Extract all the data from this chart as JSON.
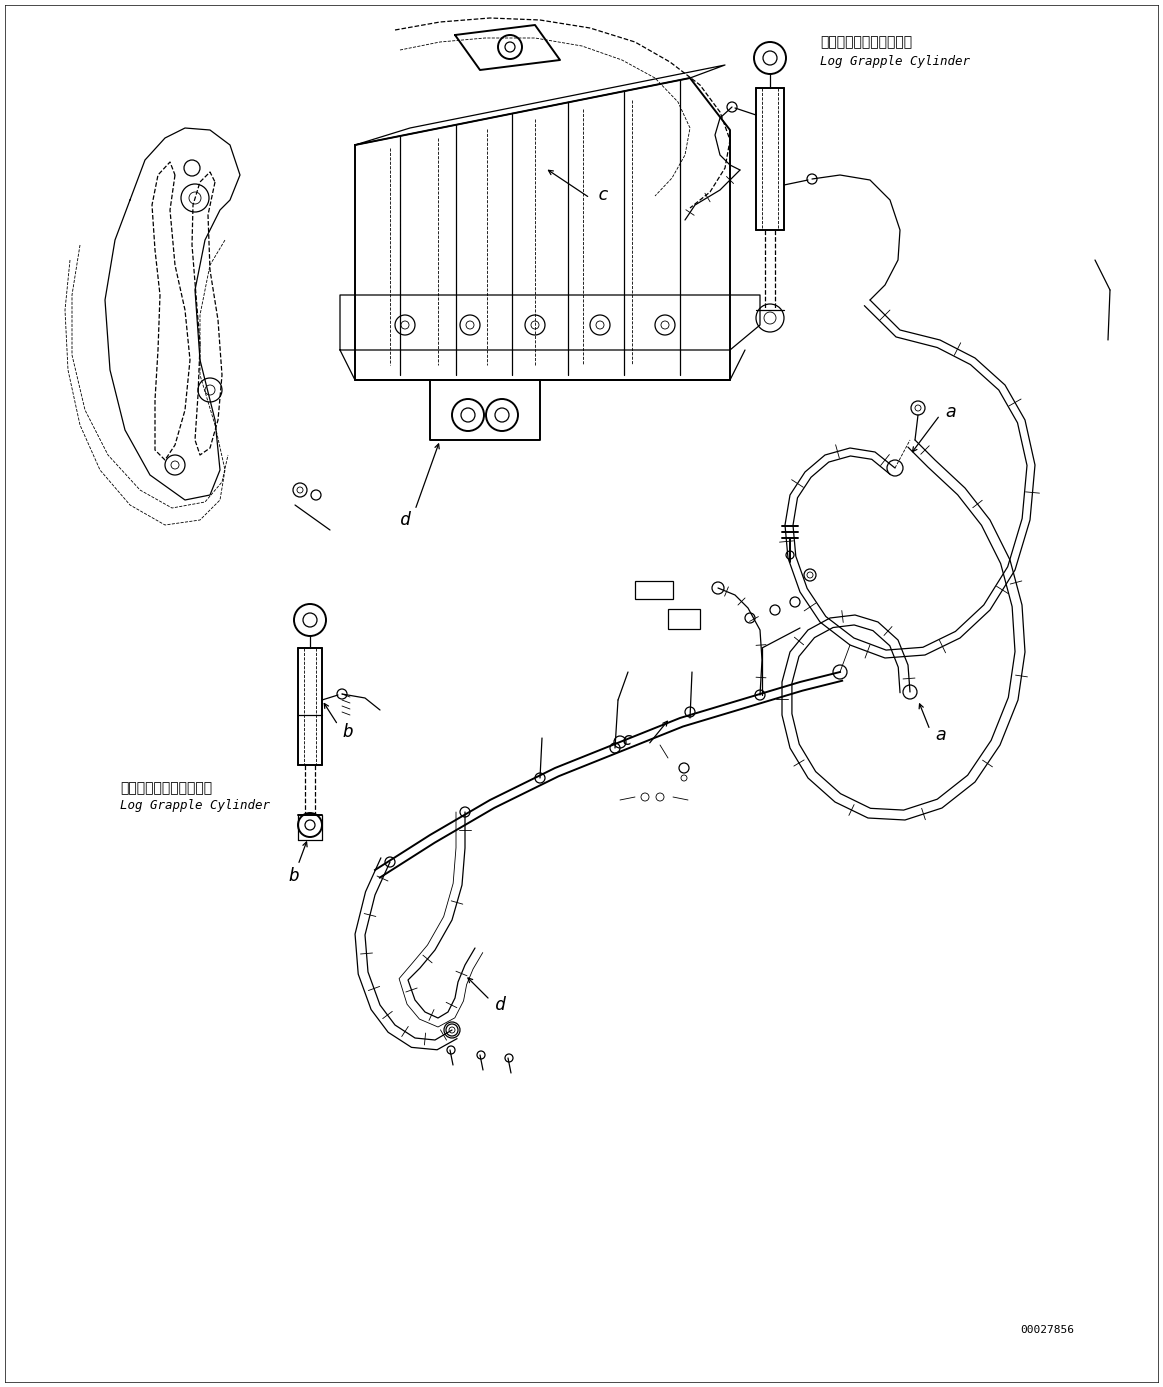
{
  "background_color": "#ffffff",
  "line_color": "#000000",
  "fig_width": 11.63,
  "fig_height": 13.87,
  "dpi": 100,
  "label_top_japanese": "ロググラップルシリンダ",
  "label_top_english": "Log Grapple Cylinder",
  "label_bottom_japanese": "ロググラップルシリンダ",
  "label_bottom_english": "Log Grapple Cylinder",
  "part_number": "00027856",
  "font_size_japanese": 10,
  "font_size_english": 9,
  "font_size_label": 13,
  "font_size_part_number": 8
}
